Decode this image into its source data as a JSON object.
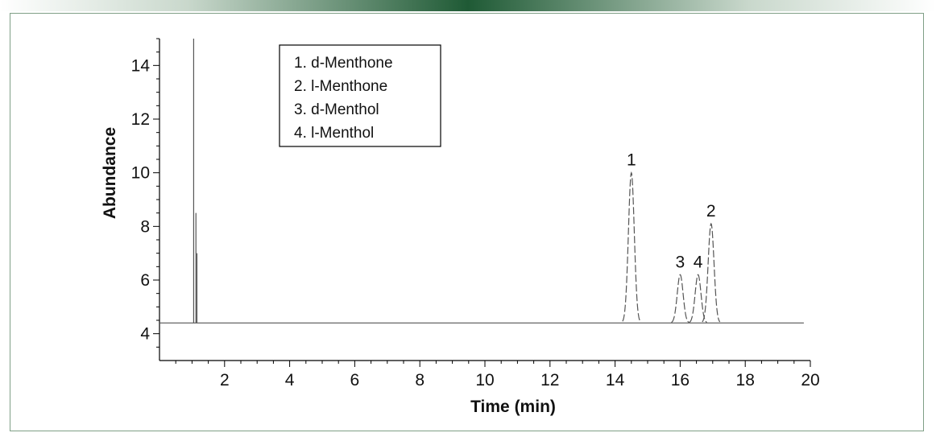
{
  "chart_data": {
    "type": "line",
    "xlabel": "Time (min)",
    "ylabel": "Abundance",
    "xlim": [
      0,
      20
    ],
    "ylim": [
      3,
      15
    ],
    "x_ticks": [
      2,
      4,
      6,
      8,
      10,
      12,
      14,
      16,
      18,
      20
    ],
    "y_ticks": [
      4,
      6,
      8,
      10,
      12,
      14
    ],
    "legend": {
      "placement": "top-left",
      "entries": [
        "1.  d-Menthone",
        "2.  l-Menthone",
        "3.  d-Menthol",
        "4.  l-Menthol"
      ]
    },
    "baseline": 4.4,
    "trace_end": 19.8,
    "solvent_peaks": [
      {
        "time": 1.05,
        "height": 15.0
      },
      {
        "time": 1.12,
        "height": 8.5
      },
      {
        "time": 1.15,
        "height": 7.0
      }
    ],
    "peaks": [
      {
        "label": "1",
        "time": 14.5,
        "height": 10.0
      },
      {
        "label": "3",
        "time": 16.0,
        "height": 6.2
      },
      {
        "label": "4",
        "time": 16.55,
        "height": 6.2
      },
      {
        "label": "2",
        "time": 16.95,
        "height": 8.1
      }
    ]
  }
}
